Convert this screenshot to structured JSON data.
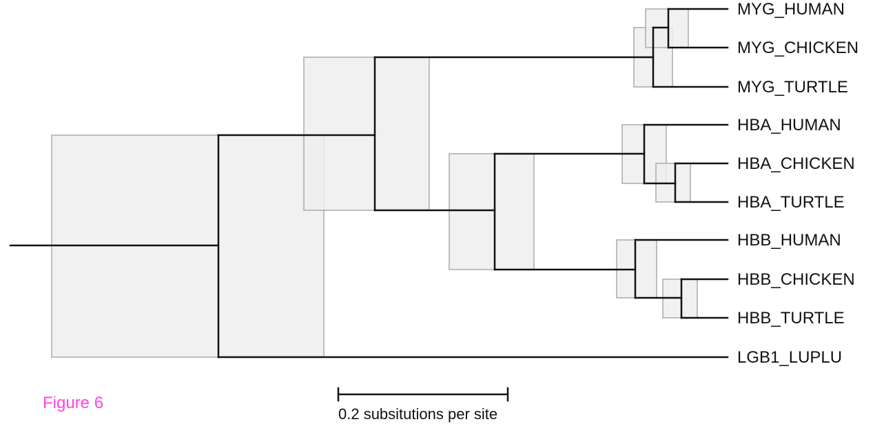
{
  "figure": {
    "caption": "Figure 6",
    "caption_color": "#ff44dd",
    "scale_bar_label": "0.2 subsitutions per site",
    "ci_box_fill": "#eeeeee",
    "ci_box_stroke": "#aaaaaa",
    "branch_color": "#111111"
  },
  "tree": {
    "leaves": [
      {
        "id": "myg-human",
        "label": "MYG_HUMAN"
      },
      {
        "id": "myg-chicken",
        "label": "MYG_CHICKEN"
      },
      {
        "id": "myg-turtle",
        "label": "MYG_TURTLE"
      },
      {
        "id": "hba-human",
        "label": "HBA_HUMAN"
      },
      {
        "id": "hba-chicken",
        "label": "HBA_CHICKEN"
      },
      {
        "id": "hba-turtle",
        "label": "HBA_TURTLE"
      },
      {
        "id": "hbb-human",
        "label": "HBB_HUMAN"
      },
      {
        "id": "hbb-chicken",
        "label": "HBB_CHICKEN"
      },
      {
        "id": "hbb-turtle",
        "label": "HBB_TURTLE"
      },
      {
        "id": "lgb1-luplu",
        "label": "LGB1_LUPLU"
      }
    ]
  }
}
